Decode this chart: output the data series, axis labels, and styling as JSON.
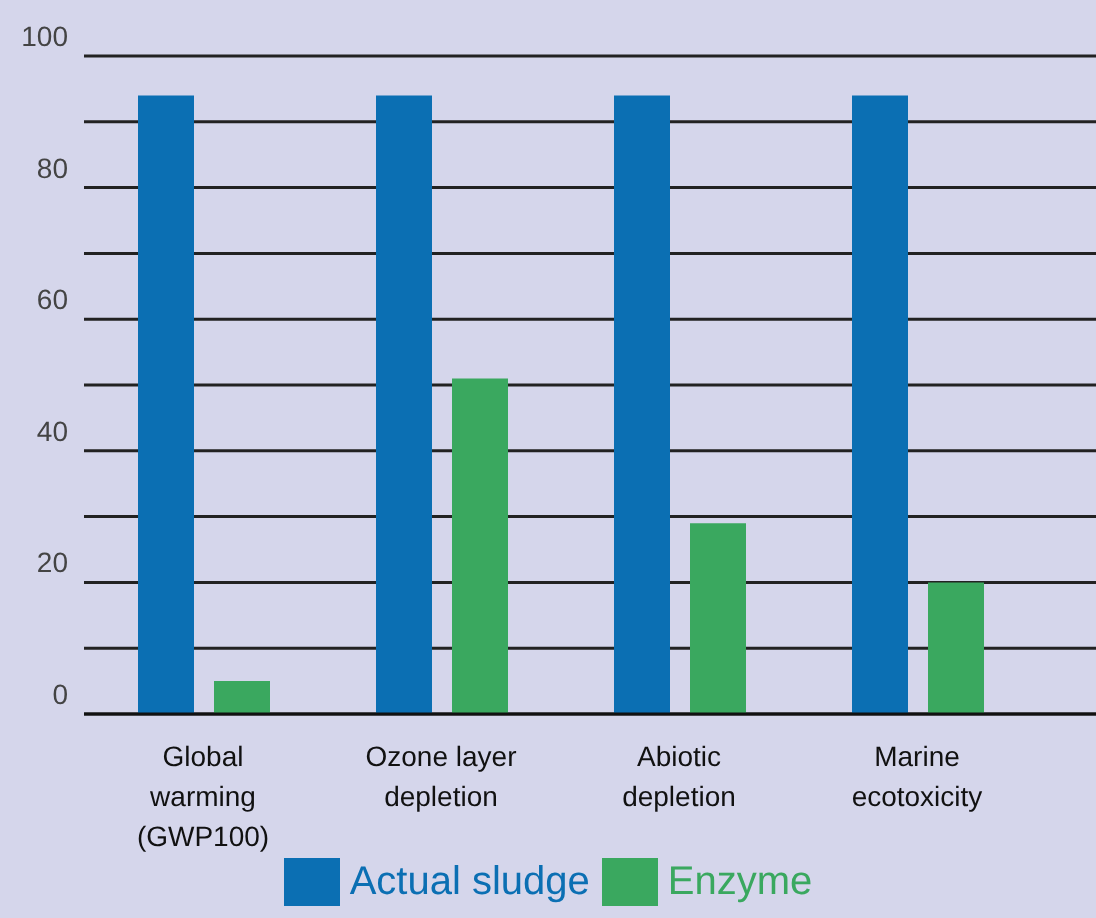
{
  "chart_data": {
    "type": "bar",
    "categories": [
      "Global\nwarming\n(GWP100)",
      "Ozone layer\ndepletion",
      "Abiotic\ndepletion",
      "Marine\necotoxicity"
    ],
    "series": [
      {
        "name": "Actual sludge",
        "color": "#0b6fb3",
        "values": [
          94,
          94,
          94,
          94
        ]
      },
      {
        "name": "Enzyme",
        "color": "#3aa85f",
        "values": [
          5,
          51,
          29,
          20
        ]
      }
    ],
    "ylim": [
      0,
      100
    ],
    "yticks": [
      0,
      {
        "value": 10,
        "label": null
      },
      20,
      {
        "value": 30,
        "label": null
      },
      40,
      {
        "value": 50,
        "label": null
      },
      60,
      {
        "value": 70,
        "label": null
      },
      80,
      {
        "value": 90,
        "label": null
      },
      100
    ],
    "grid": "y",
    "legend": "bottom"
  }
}
